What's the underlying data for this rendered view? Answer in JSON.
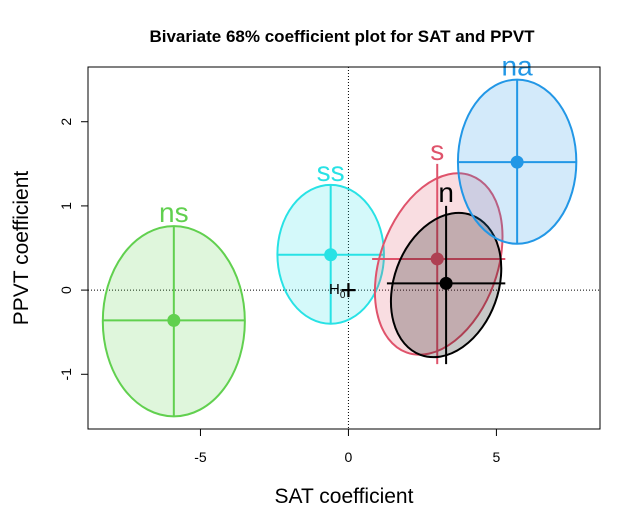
{
  "chart_data": {
    "type": "scatter",
    "title": "Bivariate 68% coefficient plot for SAT and PPVT",
    "xlabel": "SAT coefficient",
    "ylabel": "PPVT coefficient",
    "xlim": [
      -8.8,
      8.5
    ],
    "ylim": [
      -1.65,
      2.65
    ],
    "xticks": [
      -5,
      0,
      5
    ],
    "yticks": [
      -1,
      0,
      1,
      2
    ],
    "null_hypothesis": {
      "label": "H0",
      "x": 0,
      "y": 0
    },
    "reference_lines": {
      "x": 0,
      "y": 0,
      "style": "dotted"
    },
    "series": [
      {
        "name": "ns",
        "color": "#61D04F",
        "center": [
          -5.9,
          -0.36
        ],
        "x_range": [
          -8.3,
          -3.5
        ],
        "y_range": [
          -1.5,
          0.76
        ],
        "tilt_deg": 0
      },
      {
        "name": "ss",
        "color": "#28E2E5",
        "center": [
          -0.6,
          0.42
        ],
        "x_range": [
          -2.4,
          1.2
        ],
        "y_range": [
          -0.4,
          1.25
        ],
        "tilt_deg": 0
      },
      {
        "name": "s",
        "color": "#DF536B",
        "center": [
          3.0,
          0.37
        ],
        "x_range": [
          0.8,
          5.3
        ],
        "y_range": [
          -0.88,
          1.5
        ],
        "tilt_deg": 20
      },
      {
        "name": "n",
        "color": "#000000",
        "center": [
          3.3,
          0.08
        ],
        "x_range": [
          1.3,
          5.3
        ],
        "y_range": [
          -0.88,
          1.0
        ],
        "tilt_deg": 20
      },
      {
        "name": "na",
        "color": "#2297E6",
        "center": [
          5.7,
          1.52
        ],
        "x_range": [
          3.7,
          7.7
        ],
        "y_range": [
          0.55,
          2.5
        ],
        "tilt_deg": 0
      }
    ]
  }
}
